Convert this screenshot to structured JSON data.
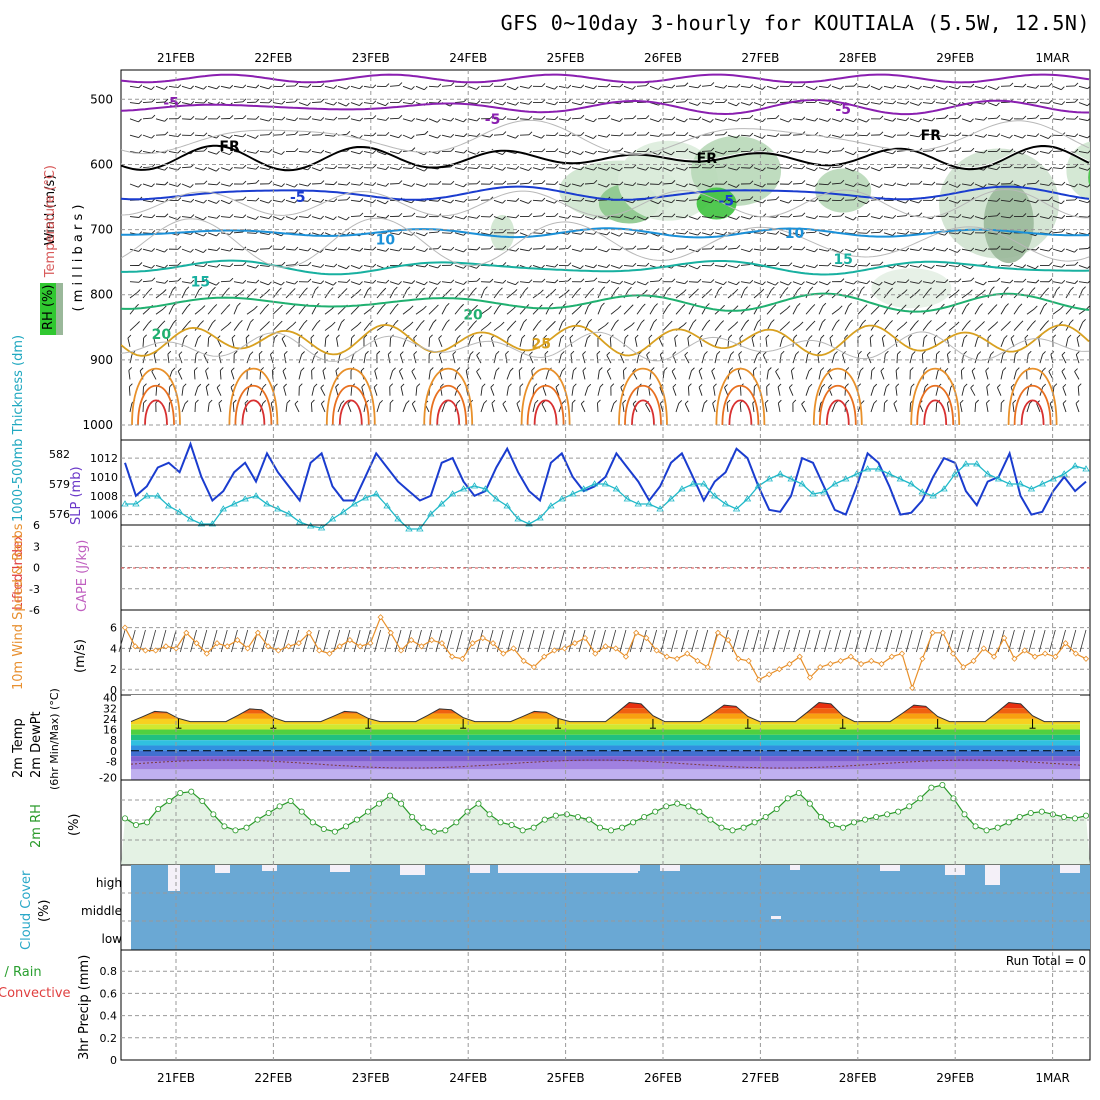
{
  "title": "GFS 0~10day 3-hourly for KOUTIALA (5.5W, 12.5N)",
  "dates": [
    "21FEB",
    "22FEB",
    "23FEB",
    "24FEB",
    "25FEB",
    "26FEB",
    "27FEB",
    "28FEB",
    "29FEB",
    "1MAR"
  ],
  "colors": {
    "grid": "#999999",
    "blue": "#1a3ccf",
    "cyan": "#20b8c8",
    "orange": "#e8902a",
    "green": "#2a9a2a",
    "cloud": "#6aa8d4",
    "purple": "#8a1fb0"
  },
  "chart_data": [
    {
      "type": "line",
      "name": "upper-air",
      "title": "Temperature / RH / Wind cross-section",
      "ylabels": {
        "wind": "Wind (m/s)",
        "temperature": "Temperature (°C)",
        "rh": "RH (%)",
        "pressure": "( m i l l i b a r s )"
      },
      "ylim": [
        1000,
        450
      ],
      "yticks": [
        500,
        600,
        700,
        800,
        900,
        1000
      ],
      "contour_labels": [
        {
          "text": "-5",
          "day": 0.4,
          "p": 505,
          "color": "#8a1fb0"
        },
        {
          "text": "-5",
          "day": 3.7,
          "p": 530,
          "color": "#8a1fb0"
        },
        {
          "text": "-5",
          "day": 7.3,
          "p": 515,
          "color": "#8a1fb0"
        },
        {
          "text": "FR",
          "day": 1.0,
          "p": 572,
          "color": "#000000"
        },
        {
          "text": "FR",
          "day": 5.9,
          "p": 590,
          "color": "#000000"
        },
        {
          "text": "FR",
          "day": 8.2,
          "p": 555,
          "color": "#000000"
        },
        {
          "text": "-5",
          "day": 1.7,
          "p": 650,
          "color": "#1a3ccf"
        },
        {
          "text": "-5",
          "day": 6.1,
          "p": 655,
          "color": "#1a3ccf"
        },
        {
          "text": "10",
          "day": 2.6,
          "p": 715,
          "color": "#1a90d8"
        },
        {
          "text": "10",
          "day": 6.8,
          "p": 705,
          "color": "#1a90d8"
        },
        {
          "text": "15",
          "day": 0.7,
          "p": 780,
          "color": "#18b0a0"
        },
        {
          "text": "15",
          "day": 7.3,
          "p": 745,
          "color": "#18b0a0"
        },
        {
          "text": "20",
          "day": 0.3,
          "p": 860,
          "color": "#20b070"
        },
        {
          "text": "20",
          "day": 3.5,
          "p": 830,
          "color": "#20b070"
        },
        {
          "text": "25",
          "day": 4.2,
          "p": 875,
          "color": "#d8a020"
        }
      ]
    },
    {
      "type": "line",
      "name": "thickness-slp",
      "ylabels": {
        "thickness": "1000-500mb Thickness (dm)",
        "slp": "SLP (mb)"
      },
      "thickness_ticks": [
        576,
        579,
        582
      ],
      "slp_ticks": [
        1006,
        1008,
        1010,
        1012
      ],
      "slp": [
        1011.5,
        1008,
        1009,
        1011,
        1011.5,
        1010.5,
        1013.5,
        1010,
        1007.5,
        1008.5,
        1010.5,
        1011.5,
        1009.5,
        1012.5,
        1010.5,
        1009,
        1007.5,
        1011.5,
        1012.5,
        1009,
        1007.5,
        1007.5,
        1010,
        1012.5,
        1011,
        1009.5,
        1008.5,
        1007.5,
        1008,
        1011.5,
        1012,
        1009.5,
        1008,
        1008.5,
        1011,
        1013,
        1010.5,
        1008.5,
        1007.5,
        1011.5,
        1012.5,
        1010,
        1008.5,
        1009,
        1010,
        1012.5,
        1011,
        1009.5,
        1007.5,
        1009,
        1011.5,
        1012.5,
        1010,
        1007.5,
        1009.5,
        1010.5,
        1013,
        1012,
        1009,
        1006.5,
        1006.3,
        1008,
        1012,
        1011.5,
        1009,
        1006.5,
        1006,
        1009,
        1012.5,
        1011.5,
        1009,
        1006,
        1006.2,
        1007.5,
        1010,
        1012,
        1011.5,
        1008.5,
        1007,
        1009.5,
        1010,
        1012.5,
        1008,
        1006,
        1006.3,
        1008.5,
        1010,
        1008.5,
        1009.5
      ],
      "thickness": [
        577,
        577,
        577.8,
        577.8,
        576.8,
        576.2,
        575.5,
        575,
        575,
        576.5,
        577,
        577.5,
        577.8,
        577,
        576.5,
        576,
        575.2,
        574.8,
        574.6,
        575.5,
        576.2,
        577,
        577.6,
        578,
        576.8,
        575.5,
        574.5,
        574.5,
        576,
        577,
        578,
        578.5,
        578.8,
        578.5,
        577.5,
        576.8,
        575.5,
        575,
        575.6,
        576.8,
        577.5,
        578,
        578.5,
        579,
        579,
        578.5,
        577.5,
        577,
        577,
        576.5,
        577.5,
        578.5,
        579,
        579,
        577.8,
        577,
        576.5,
        577.5,
        578.8,
        579.5,
        580,
        579.5,
        579,
        578,
        578.2,
        579,
        579.5,
        580,
        580.5,
        580.5,
        580,
        579.5,
        579,
        578.2,
        577.8,
        578.5,
        580,
        581,
        581,
        580,
        579.5,
        579,
        579,
        578.5,
        579,
        579.5,
        580,
        580.8,
        580.5
      ]
    },
    {
      "type": "line",
      "name": "cape-lifted-index",
      "ylabels": {
        "li": "Lifted Index",
        "cape": "CAPE (J/kg)"
      },
      "yticks": [
        "6",
        "3",
        "0",
        "-3",
        "-6"
      ]
    },
    {
      "type": "line",
      "name": "10m-wind",
      "ylabels": {
        "main": "10m Wind Speed & Barbs",
        "unit": "(m/s)"
      },
      "yticks": [
        0,
        2,
        4,
        6
      ],
      "values": [
        6,
        4.2,
        3.8,
        3.8,
        4.2,
        4,
        5.5,
        4.5,
        3.5,
        4.5,
        4.2,
        4.8,
        4,
        5.5,
        4.2,
        3.8,
        4.2,
        4.5,
        5.5,
        3.8,
        3.5,
        4.2,
        4.8,
        4.2,
        4.5,
        7,
        5.5,
        3.8,
        4.8,
        4.2,
        4.8,
        4.5,
        3.2,
        3,
        4.5,
        5,
        4.5,
        3.5,
        4,
        2.8,
        2.2,
        3.2,
        3.8,
        4,
        4.5,
        5,
        3.5,
        4.2,
        4,
        3.2,
        5.5,
        5,
        3.8,
        3.2,
        3,
        3.5,
        2.8,
        2.2,
        5.5,
        4.8,
        3,
        2.8,
        1,
        1.5,
        2,
        2.5,
        3.2,
        1.2,
        2.2,
        2.5,
        2.8,
        3.2,
        2.5,
        2.8,
        2.5,
        3.2,
        3.5,
        0.2,
        3,
        5.5,
        5.5,
        3.5,
        2.2,
        2.8,
        4,
        3.2,
        5,
        3,
        3.8,
        3.2,
        3.5,
        3.2,
        4.5,
        3.5,
        3
      ]
    },
    {
      "type": "area",
      "name": "2m-temp",
      "ylabels": {
        "main": "2m Temp",
        "dew": "2m DewPt",
        "range": "(6hr Min/Max) (°C)"
      },
      "yticks": [
        40,
        32,
        24,
        16,
        8,
        0,
        -8,
        -20
      ]
    },
    {
      "type": "area",
      "name": "2m-rh",
      "ylabels": {
        "main": "2m RH",
        "unit": "(%)"
      },
      "values": [
        55,
        50,
        52,
        62,
        68,
        74,
        75,
        68,
        58,
        49,
        46,
        48,
        54,
        59,
        64,
        68,
        60,
        52,
        47,
        45,
        49,
        54,
        60,
        66,
        72,
        66,
        56,
        48,
        45,
        46,
        52,
        60,
        66,
        58,
        52,
        50,
        46,
        48,
        54,
        57,
        58,
        56,
        54,
        48,
        46,
        48,
        52,
        56,
        60,
        64,
        66,
        64,
        60,
        54,
        48,
        46,
        48,
        52,
        56,
        62,
        70,
        74,
        66,
        56,
        50,
        48,
        52,
        54,
        56,
        58,
        60,
        64,
        70,
        78,
        80,
        70,
        58,
        49,
        46,
        48,
        52,
        56,
        59,
        60,
        58,
        56,
        55,
        57
      ]
    },
    {
      "type": "bar",
      "name": "cloud-cover",
      "ylabels": {
        "main": "Cloud Cover",
        "unit": "(%)"
      },
      "levels": [
        "high",
        "middle",
        "low"
      ]
    },
    {
      "type": "bar",
      "name": "precip",
      "ylabels": {
        "total": "Total / Rain",
        "conv": "Convective",
        "unit": "3hr Precip (mm)"
      },
      "yticks": [
        "0",
        "0.2",
        "0.4",
        "0.6",
        "0.8"
      ],
      "run_total": "Run Total = 0"
    }
  ]
}
